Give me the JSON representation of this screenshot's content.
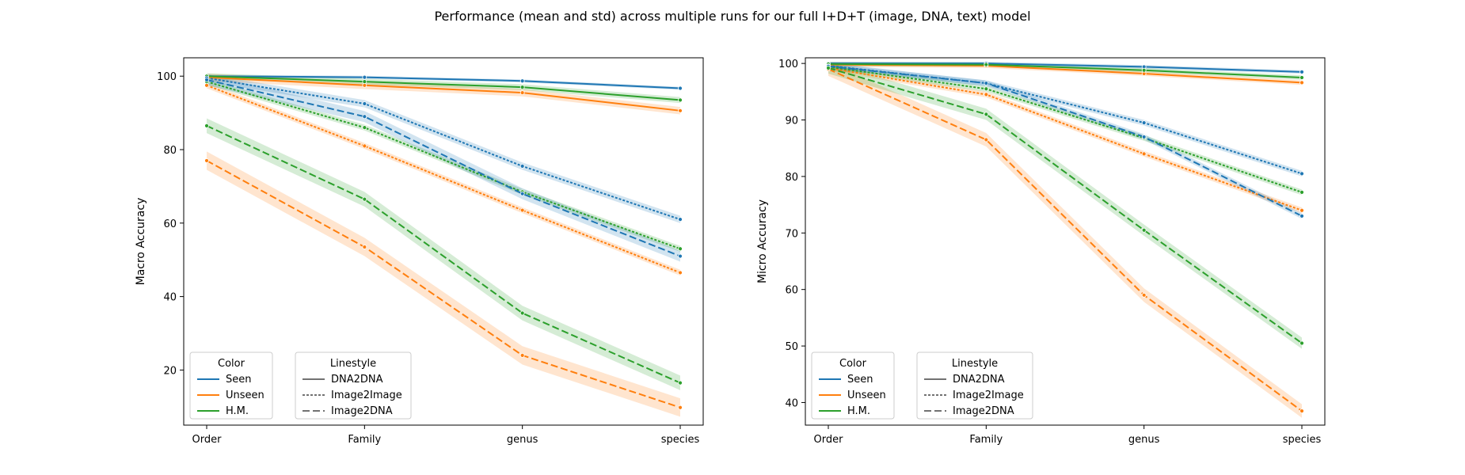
{
  "figure": {
    "title": "Performance (mean and std) across multiple runs for our full I+D+T (image, DNA, text) model"
  },
  "colors": {
    "Seen": "#1f77b4",
    "Unseen": "#ff7f0e",
    "H.M.": "#2ca02c"
  },
  "legends": {
    "color": {
      "title": "Color",
      "entries": [
        "Seen",
        "Unseen",
        "H.M."
      ]
    },
    "linestyle": {
      "title": "Linestyle",
      "entries": [
        "DNA2DNA",
        "Image2Image",
        "Image2DNA"
      ]
    }
  },
  "chart_data": [
    {
      "type": "line",
      "categories": [
        "Order",
        "Family",
        "genus",
        "species"
      ],
      "ylabel": "Macro Accuracy",
      "ylim": [
        5,
        105
      ],
      "yticks": [
        20,
        40,
        60,
        80,
        100
      ],
      "series": [
        {
          "color": "Seen",
          "style": "DNA2DNA",
          "values": [
            100,
            99.7,
            98.7,
            96.7
          ],
          "std": 0.4
        },
        {
          "color": "Unseen",
          "style": "DNA2DNA",
          "values": [
            99.7,
            97.5,
            95.5,
            90.6
          ],
          "std": 1.0
        },
        {
          "color": "H.M.",
          "style": "DNA2DNA",
          "values": [
            100,
            98.5,
            97.0,
            93.5
          ],
          "std": 0.8
        },
        {
          "color": "Seen",
          "style": "Image2Image",
          "values": [
            99.5,
            92.5,
            75.5,
            61.0
          ],
          "std": 1.0
        },
        {
          "color": "Unseen",
          "style": "Image2Image",
          "values": [
            97.5,
            81.0,
            63.5,
            46.5
          ],
          "std": 0.8
        },
        {
          "color": "H.M.",
          "style": "Image2Image",
          "values": [
            98.5,
            86.0,
            68.5,
            53.0
          ],
          "std": 0.8
        },
        {
          "color": "Seen",
          "style": "Image2DNA",
          "values": [
            99.0,
            89.0,
            68.0,
            51.0
          ],
          "std": 1.5
        },
        {
          "color": "Unseen",
          "style": "Image2DNA",
          "values": [
            77.0,
            53.5,
            24.0,
            9.8
          ],
          "std": 2.5
        },
        {
          "color": "H.M.",
          "style": "Image2DNA",
          "values": [
            86.5,
            66.5,
            35.5,
            16.5
          ],
          "std": 2.0
        }
      ]
    },
    {
      "type": "line",
      "categories": [
        "Order",
        "Family",
        "genus",
        "species"
      ],
      "ylabel": "Micro Accuracy",
      "ylim": [
        36,
        101
      ],
      "yticks": [
        40,
        50,
        60,
        70,
        80,
        90,
        100
      ],
      "series": [
        {
          "color": "Seen",
          "style": "DNA2DNA",
          "values": [
            100,
            100,
            99.4,
            98.5
          ],
          "std": 0.3
        },
        {
          "color": "Unseen",
          "style": "DNA2DNA",
          "values": [
            99.8,
            99.6,
            98.2,
            96.6
          ],
          "std": 0.4
        },
        {
          "color": "H.M.",
          "style": "DNA2DNA",
          "values": [
            99.9,
            99.8,
            98.8,
            97.5
          ],
          "std": 0.4
        },
        {
          "color": "Seen",
          "style": "Image2Image",
          "values": [
            99.6,
            96.5,
            89.5,
            80.5
          ],
          "std": 0.5
        },
        {
          "color": "Unseen",
          "style": "Image2Image",
          "values": [
            99.2,
            94.5,
            84.0,
            74.0
          ],
          "std": 0.5
        },
        {
          "color": "H.M.",
          "style": "Image2Image",
          "values": [
            99.4,
            95.5,
            86.8,
            77.2
          ],
          "std": 0.5
        },
        {
          "color": "Seen",
          "style": "Image2DNA",
          "values": [
            99.5,
            96.5,
            87.0,
            73.0
          ],
          "std": 0.5
        },
        {
          "color": "Unseen",
          "style": "Image2DNA",
          "values": [
            99.0,
            86.5,
            59.0,
            38.5
          ],
          "std": 1.2
        },
        {
          "color": "H.M.",
          "style": "Image2DNA",
          "values": [
            99.2,
            91.0,
            70.5,
            50.5
          ],
          "std": 1.0
        }
      ]
    }
  ]
}
